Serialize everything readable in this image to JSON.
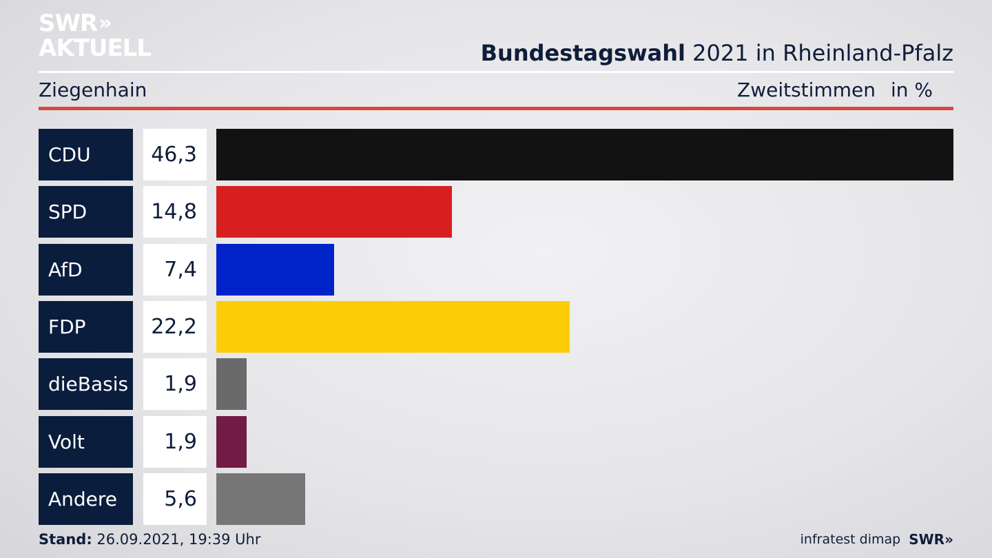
{
  "logo": {
    "line1": "SWR",
    "line2": "AKTUELL",
    "chevrons": "»"
  },
  "header": {
    "title_bold": "Bundestagswahl",
    "title_rest": " 2021 in Rheinland-Pfalz",
    "location": "Ziegenhain",
    "measure": "Zweitstimmen",
    "unit": "in %"
  },
  "chart_data": {
    "type": "bar",
    "orientation": "horizontal",
    "categories": [
      "CDU",
      "SPD",
      "AfD",
      "FDP",
      "dieBasis",
      "Volt",
      "Andere"
    ],
    "values": [
      46.3,
      14.8,
      7.4,
      22.2,
      1.9,
      1.9,
      5.6
    ],
    "value_labels": [
      "46,3",
      "14,8",
      "7,4",
      "22,2",
      "1,9",
      "1,9",
      "5,6"
    ],
    "colors": [
      "#121212",
      "#d81f20",
      "#0022c9",
      "#fdcc08",
      "#6a6a6a",
      "#721b47",
      "#767676"
    ],
    "title": "Bundestagswahl 2021 in Rheinland-Pfalz",
    "xlim": [
      0,
      46.3
    ]
  },
  "footer": {
    "stand_label": "Stand:",
    "stand_value": " 26.09.2021, 19:39 Uhr",
    "source": "infratest dimap",
    "brand": "SWR",
    "brand_chevrons": "»"
  }
}
